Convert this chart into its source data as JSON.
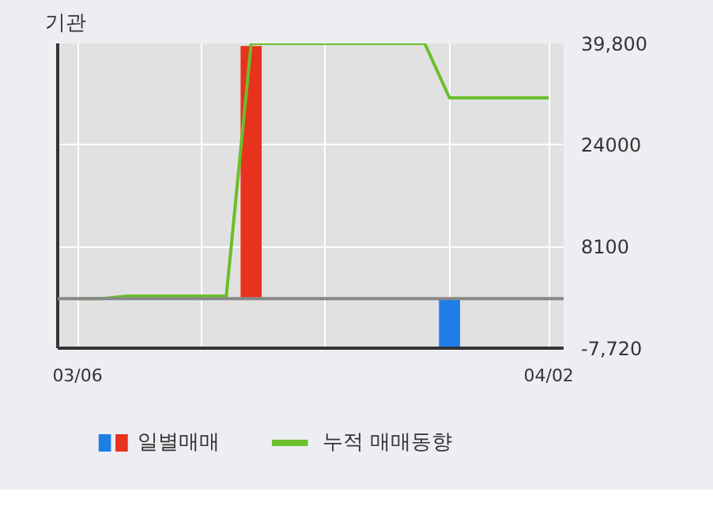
{
  "chart_data": {
    "type": "bar",
    "title": "기관",
    "categories": [
      "03/06",
      null,
      null,
      null,
      null,
      null,
      null,
      null,
      null,
      null,
      null,
      null,
      null,
      null,
      null,
      null,
      null,
      null,
      null,
      "04/02"
    ],
    "series": [
      {
        "name": "일별매매",
        "colors": [
          "#e8321e",
          "#e8321e",
          "#e8321e",
          "#e8321e",
          "#e8321e",
          "#e8321e",
          "#e8321e",
          "#e8321e",
          "#e8321e",
          "#e8321e",
          "#e8321e",
          "#e8321e",
          "#e8321e",
          "#e8321e",
          "#e8321e",
          "#1e7ee8",
          "#e8321e",
          "#e8321e",
          "#e8321e",
          "#e8321e"
        ],
        "values": [
          null,
          null,
          null,
          null,
          null,
          null,
          null,
          39400,
          null,
          null,
          null,
          null,
          null,
          null,
          null,
          -7700,
          null,
          null,
          null,
          null
        ]
      },
      {
        "name": "누적 매매동향",
        "type": "line",
        "color": "#6abf2a",
        "values": [
          0,
          0,
          400,
          400,
          400,
          400,
          400,
          39800,
          39800,
          39800,
          39800,
          39800,
          39800,
          39800,
          39800,
          31300,
          31300,
          31300,
          31300,
          31300
        ]
      }
    ],
    "ylim": [
      -7720,
      39800
    ],
    "yticks": [
      {
        "value": 39800,
        "label": "39,800"
      },
      24000,
      8100,
      {
        "value": -7720,
        "label": "-7,720"
      }
    ],
    "ref_lines": [
      {
        "axis": "y",
        "value": 0,
        "color": "#888888"
      }
    ],
    "grid": true,
    "legend": "bottom"
  }
}
